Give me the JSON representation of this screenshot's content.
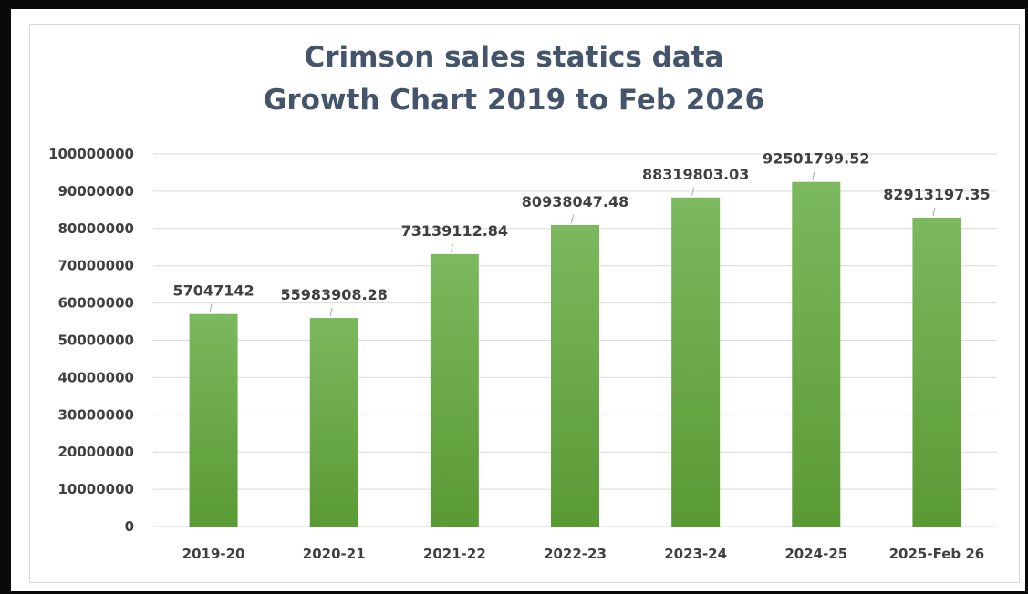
{
  "chart_data": {
    "type": "bar",
    "title": "Crimson sales statics data",
    "subtitle": "Growth Chart 2019 to Feb 2026",
    "categories": [
      "2019-20",
      "2020-21",
      "2021-22",
      "2022-23",
      "2023-24",
      "2024-25",
      "2025-Feb 26"
    ],
    "values": [
      57047142,
      55983908.28,
      73139112.84,
      80938047.48,
      88319803.03,
      92501799.52,
      82913197.35
    ],
    "data_labels": [
      "57047142",
      "55983908.28",
      "73139112.84",
      "80938047.48",
      "88319803.03",
      "92501799.52",
      "82913197.35"
    ],
    "ylim": [
      0,
      100000000
    ],
    "yticks": [
      0,
      10000000,
      20000000,
      30000000,
      40000000,
      50000000,
      60000000,
      70000000,
      80000000,
      90000000,
      100000000
    ],
    "ytick_labels": [
      "0",
      "10000000",
      "20000000",
      "30000000",
      "40000000",
      "50000000",
      "60000000",
      "70000000",
      "80000000",
      "90000000",
      "100000000"
    ],
    "grid": true,
    "legend": "none",
    "colors": {
      "bar_top": "#7cb85e",
      "bar_bottom": "#5a9a34",
      "gridline": "#d9d9d9",
      "title": "#44546a",
      "text": "#404040",
      "leader": "#a6a6a6"
    }
  }
}
